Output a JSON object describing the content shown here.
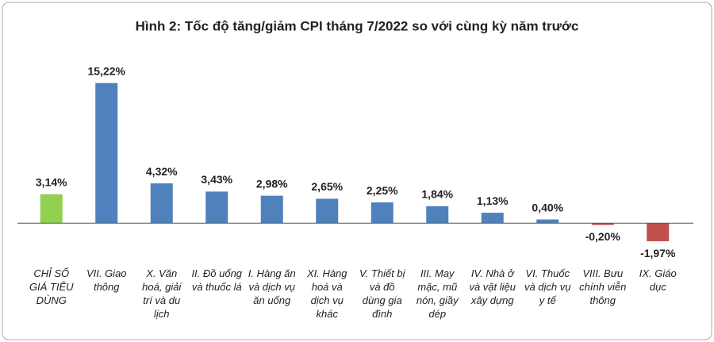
{
  "chart_data": {
    "type": "bar",
    "title": "Hình 2: Tốc độ tăng/giảm CPI tháng 7/2022 so với cùng kỳ năm trước",
    "categories": [
      "CHỈ SỐ GIÁ TIÊU DÙNG",
      "VII. Giao thông",
      "X. Văn hoá, giải trí và du lịch",
      "II. Đồ uống và thuốc lá",
      "I. Hàng ăn và dịch vụ ăn uống",
      "XI. Hàng hoá và dịch vụ khác",
      "V. Thiết bị và đồ dùng gia đình",
      "III. May mặc, mũ nón, giầy dép",
      "IV. Nhà ở và vật liệu xây dựng",
      "VI. Thuốc và dịch vụ y tế",
      "VIII. Bưu chính viễn thông",
      "IX. Giáo dục"
    ],
    "values": [
      3.14,
      15.22,
      4.32,
      3.43,
      2.98,
      2.65,
      2.25,
      1.84,
      1.13,
      0.4,
      -0.2,
      -1.97
    ],
    "value_labels": [
      "3,14%",
      "15,22%",
      "4,32%",
      "3,43%",
      "2,98%",
      "2,65%",
      "2,25%",
      "1,84%",
      "1,13%",
      "0,40%",
      "-0,20%",
      "-1,97%"
    ],
    "colors": [
      "#92d050",
      "#4f81bd",
      "#4f81bd",
      "#4f81bd",
      "#4f81bd",
      "#4f81bd",
      "#4f81bd",
      "#4f81bd",
      "#4f81bd",
      "#4f81bd",
      "#c0504d",
      "#c0504d"
    ],
    "ylim": [
      -3,
      17
    ]
  }
}
